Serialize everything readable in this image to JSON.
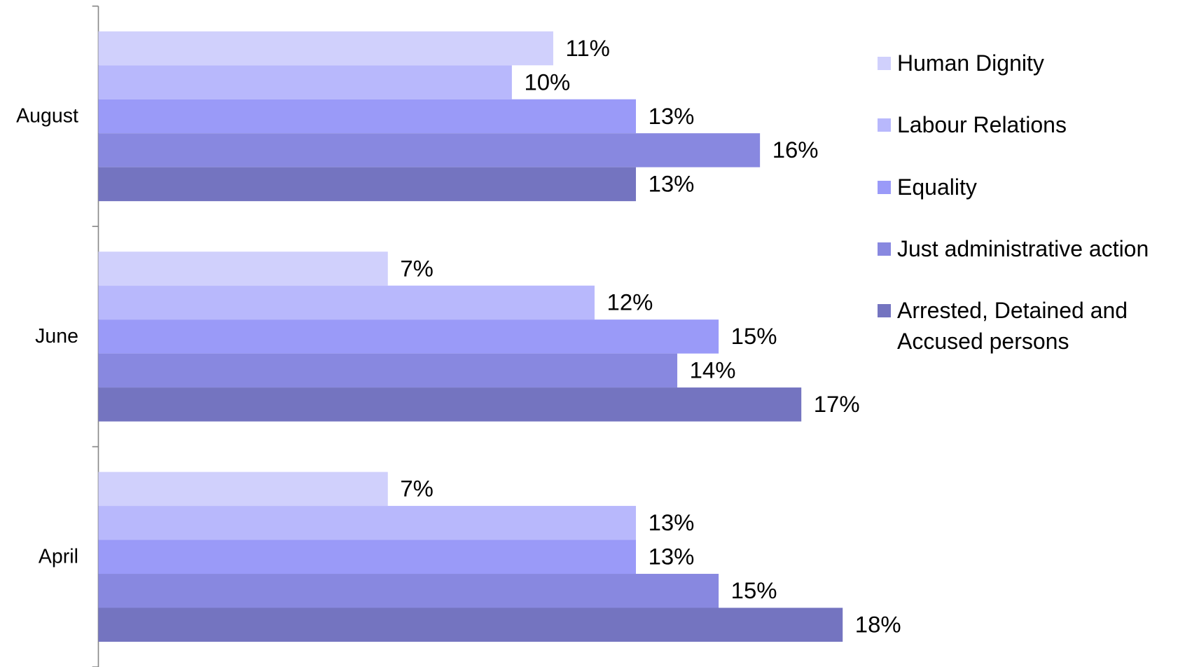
{
  "chart_data": {
    "type": "hbar",
    "categories": [
      "August",
      "June",
      "April"
    ],
    "series": [
      {
        "name": "Human Dignity",
        "color": "#d0d0fc",
        "values": [
          11,
          7,
          7
        ],
        "value_labels": [
          "11%",
          "7%",
          "7%"
        ]
      },
      {
        "name": "Labour Relations",
        "color": "#b8b8fc",
        "values": [
          10,
          12,
          13
        ],
        "value_labels": [
          "10%",
          "12%",
          "13%"
        ]
      },
      {
        "name": "Equality",
        "color": "#9a9af8",
        "values": [
          13,
          15,
          13
        ],
        "value_labels": [
          "13%",
          "15%",
          "13%"
        ]
      },
      {
        "name": "Just administrative action",
        "color": "#8888e0",
        "values": [
          16,
          14,
          15
        ],
        "value_labels": [
          "16%",
          "14%",
          "15%"
        ]
      },
      {
        "name": "Arrested, Detained and Accused persons",
        "color": "#7474c0",
        "values": [
          13,
          17,
          18
        ],
        "value_labels": [
          "13%",
          "17%",
          "18%"
        ]
      }
    ],
    "legend": "right"
  }
}
